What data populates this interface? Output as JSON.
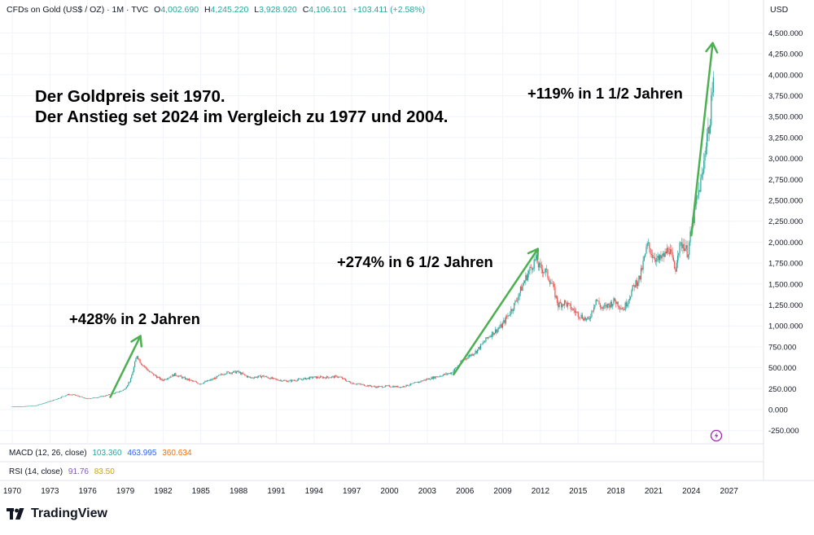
{
  "header": {
    "symbol": "CFDs on Gold (US$ / OZ) · 1M · TVC",
    "o_label": "O",
    "o_value": "4,002.690",
    "h_label": "H",
    "h_value": "4,245.220",
    "l_label": "L",
    "l_value": "3,928.920",
    "c_label": "C",
    "c_value": "4,106.101",
    "change": "+103.411 (+2.58%)",
    "currency": "USD"
  },
  "colors": {
    "up": "#26a69a",
    "down": "#ef5350",
    "arrow": "#4caf50",
    "macd": "#2962ff",
    "signal": "#ff6d00",
    "rsi": "#7e57c2",
    "rsi_ma": "#fdd835",
    "grid": "#f0f3fa",
    "axis_text": "#131722"
  },
  "indicators": {
    "macd": {
      "label": "MACD (12, 26, close)",
      "v1": "103.360",
      "v2": "463.995",
      "v3": "360.634"
    },
    "rsi": {
      "label": "RSI (14, close)",
      "v1": "91.76",
      "v2": "83.50"
    }
  },
  "logo_text": "TradingView",
  "chart_data": {
    "type": "candlestick",
    "title": "Der Goldpreis seit 1970.",
    "subtitle": "Der Anstieg set 2024 im Vergleich zu 1977 und 2004.",
    "ylabel": "USD",
    "ylim": [
      -300,
      4600
    ],
    "xlim": [
      1970,
      2028
    ],
    "y_ticks": [
      "4,500.000",
      "4,250.000",
      "4,000.000",
      "3,750.000",
      "3,500.000",
      "3,250.000",
      "3,000.000",
      "2,750.000",
      "2,500.000",
      "2,250.000",
      "2,000.000",
      "1,750.000",
      "1,500.000",
      "1,250.000",
      "1,000.000",
      "750.000",
      "500.000",
      "250.000",
      "0.000",
      "-250.000"
    ],
    "y_tick_values": [
      4500,
      4250,
      4000,
      3750,
      3500,
      3250,
      3000,
      2750,
      2500,
      2250,
      2000,
      1750,
      1500,
      1250,
      1000,
      750,
      500,
      250,
      0,
      -250
    ],
    "x_ticks": [
      "1970",
      "1973",
      "1976",
      "1979",
      "1982",
      "1985",
      "1988",
      "1991",
      "1994",
      "1997",
      "2000",
      "2003",
      "2006",
      "2009",
      "2012",
      "2015",
      "2018",
      "2021",
      "2024",
      "2027"
    ],
    "x_tick_values": [
      1970,
      1973,
      1976,
      1979,
      1982,
      1985,
      1988,
      1991,
      1994,
      1997,
      2000,
      2003,
      2006,
      2009,
      2012,
      2015,
      2018,
      2021,
      2024,
      2027
    ],
    "price_path": [
      [
        1970.0,
        35
      ],
      [
        1971.0,
        38
      ],
      [
        1972.0,
        50
      ],
      [
        1973.0,
        95
      ],
      [
        1973.5,
        120
      ],
      [
        1974.0,
        150
      ],
      [
        1974.5,
        180
      ],
      [
        1975.0,
        175
      ],
      [
        1976.0,
        130
      ],
      [
        1977.0,
        150
      ],
      [
        1978.0,
        185
      ],
      [
        1978.5,
        210
      ],
      [
        1979.0,
        240
      ],
      [
        1979.5,
        360
      ],
      [
        1980.0,
        650
      ],
      [
        1980.3,
        560
      ],
      [
        1981.0,
        450
      ],
      [
        1982.0,
        350
      ],
      [
        1983.0,
        420
      ],
      [
        1984.0,
        360
      ],
      [
        1985.0,
        310
      ],
      [
        1986.0,
        360
      ],
      [
        1987.0,
        440
      ],
      [
        1988.0,
        450
      ],
      [
        1989.0,
        380
      ],
      [
        1990.0,
        400
      ],
      [
        1991.0,
        360
      ],
      [
        1992.0,
        340
      ],
      [
        1993.0,
        360
      ],
      [
        1994.0,
        385
      ],
      [
        1995.0,
        385
      ],
      [
        1996.0,
        395
      ],
      [
        1997.0,
        320
      ],
      [
        1998.0,
        295
      ],
      [
        1999.0,
        270
      ],
      [
        2000.0,
        280
      ],
      [
        2001.0,
        270
      ],
      [
        2002.0,
        310
      ],
      [
        2003.0,
        360
      ],
      [
        2004.0,
        400
      ],
      [
        2005.0,
        440
      ],
      [
        2006.0,
        600
      ],
      [
        2007.0,
        700
      ],
      [
        2008.0,
        880
      ],
      [
        2009.0,
        1000
      ],
      [
        2010.0,
        1250
      ],
      [
        2011.0,
        1600
      ],
      [
        2011.7,
        1800
      ],
      [
        2012.0,
        1700
      ],
      [
        2012.5,
        1650
      ],
      [
        2013.0,
        1500
      ],
      [
        2013.5,
        1250
      ],
      [
        2014.0,
        1280
      ],
      [
        2015.0,
        1150
      ],
      [
        2015.9,
        1060
      ],
      [
        2016.5,
        1320
      ],
      [
        2017.0,
        1200
      ],
      [
        2018.0,
        1300
      ],
      [
        2018.7,
        1200
      ],
      [
        2019.0,
        1300
      ],
      [
        2019.6,
        1500
      ],
      [
        2020.0,
        1580
      ],
      [
        2020.6,
        1970
      ],
      [
        2021.0,
        1850
      ],
      [
        2021.5,
        1780
      ],
      [
        2022.0,
        1850
      ],
      [
        2022.3,
        1940
      ],
      [
        2022.8,
        1650
      ],
      [
        2023.0,
        1900
      ],
      [
        2023.4,
        1990
      ],
      [
        2023.8,
        1870
      ],
      [
        2024.0,
        2060
      ],
      [
        2024.3,
        2330
      ],
      [
        2024.8,
        2700
      ],
      [
        2025.0,
        2820
      ],
      [
        2025.3,
        3300
      ],
      [
        2025.6,
        3400
      ],
      [
        2025.8,
        4100
      ]
    ],
    "annotations": [
      {
        "text": "+428% in 2 Jahren",
        "from": [
          1977.8,
          150
        ],
        "to": [
          1980.2,
          880
        ]
      },
      {
        "text": "+274% in 6 1/2 Jahren",
        "from": [
          2005.1,
          420
        ],
        "to": [
          2011.8,
          1920
        ]
      },
      {
        "text": "+119% in 1 1/2 Jahren",
        "from": [
          2024.0,
          2080
        ],
        "to": [
          2025.7,
          4380
        ]
      }
    ]
  }
}
